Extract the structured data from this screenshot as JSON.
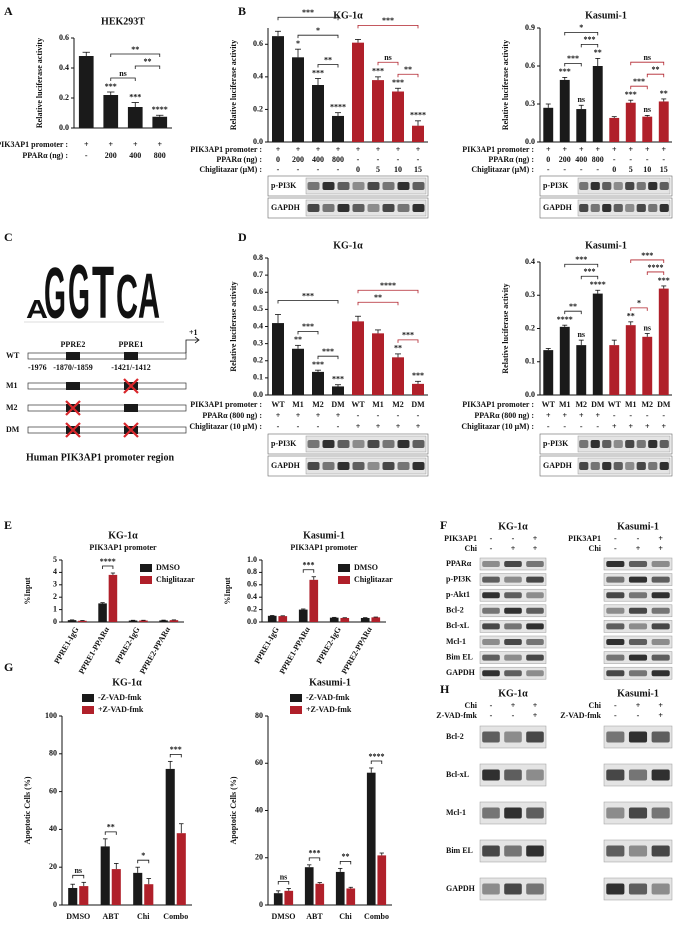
{
  "panel_letters": [
    "A",
    "B",
    "C",
    "D",
    "E",
    "F",
    "G",
    "H"
  ],
  "chart_data": [
    {
      "type": "bar",
      "title": "HEK293T",
      "y_label": "Relative luciferase activity",
      "ylim": [
        0,
        0.6
      ],
      "yticks": [
        {
          "value": 0,
          "label": "0.0"
        },
        0.2,
        0.4,
        0.6
      ],
      "values": [
        0.48,
        0.22,
        0.14,
        0.075
      ],
      "errors": [
        0.025,
        0.02,
        0.03,
        0.01
      ],
      "colors": [
        "#1a1a1a",
        "#1a1a1a",
        "#1a1a1a",
        "#1a1a1a"
      ],
      "bar_labels": [
        null,
        "***",
        "***",
        "****"
      ],
      "brackets": [
        {
          "from": 1,
          "to": 2,
          "label": "ns"
        },
        {
          "from": 2,
          "to": 3,
          "label": "**"
        },
        {
          "from": 1,
          "to": 3,
          "label": "**"
        }
      ],
      "conditions": [
        {
          "label": "PIK3AP1 promoter :",
          "values": [
            "+",
            "+",
            "+",
            "+"
          ]
        },
        {
          "label": "PPARα (ng) :",
          "values": [
            "-",
            "200",
            "400",
            "800"
          ]
        }
      ]
    },
    {
      "type": "bar",
      "title": "KG-1α",
      "y_label": "Relative luciferase activity",
      "ylim": [
        0,
        0.7
      ],
      "yticks": [
        {
          "value": 0,
          "label": "0.0"
        },
        0.2,
        0.4,
        0.6
      ],
      "values": [
        0.65,
        0.52,
        0.35,
        0.16,
        0.61,
        0.38,
        0.31,
        0.1
      ],
      "errors": [
        0.03,
        0.05,
        0.04,
        0.02,
        0.02,
        0.02,
        0.02,
        0.03
      ],
      "colors": [
        "#1a1a1a",
        "#1a1a1a",
        "#1a1a1a",
        "#1a1a1a",
        "#b0202a",
        "#b0202a",
        "#b0202a",
        "#b0202a"
      ],
      "bar_labels": [
        null,
        "*",
        "***",
        "****",
        null,
        "***",
        "***",
        "****"
      ],
      "brackets": [
        {
          "from": 2,
          "to": 3,
          "label": "**"
        },
        {
          "from": 1,
          "to": 3,
          "label": "*"
        },
        {
          "from": 0,
          "to": 3,
          "label": "***"
        },
        {
          "from": 6,
          "to": 7,
          "label": "**"
        },
        {
          "from": 5,
          "to": 6,
          "label": "ns"
        },
        {
          "from": 4,
          "to": 7,
          "label": "***"
        }
      ],
      "conditions": [
        {
          "label": "PIK3AP1 promoter :",
          "values": [
            "+",
            "+",
            "+",
            "+",
            "+",
            "+",
            "+",
            "+"
          ]
        },
        {
          "label": "PPARα (ng) :",
          "values": [
            "0",
            "200",
            "400",
            "800",
            "-",
            "-",
            "-",
            "-"
          ]
        },
        {
          "label": "Chiglitazar (μM) :",
          "values": [
            "-",
            "-",
            "-",
            "-",
            "0",
            "5",
            "10",
            "15"
          ]
        }
      ],
      "blot_rows": [
        "p-PI3K",
        "GAPDH"
      ]
    },
    {
      "type": "bar",
      "title": "Kasumi-1",
      "y_label": "Relative luciferase activity",
      "ylim": [
        0,
        0.9
      ],
      "yticks": [
        {
          "value": 0,
          "label": "0.0"
        },
        0.3,
        0.6,
        0.9
      ],
      "values": [
        0.27,
        0.49,
        0.26,
        0.6,
        0.19,
        0.31,
        0.2,
        0.32
      ],
      "errors": [
        0.03,
        0.02,
        0.03,
        0.06,
        0.01,
        0.02,
        0.01,
        0.02
      ],
      "colors": [
        "#1a1a1a",
        "#1a1a1a",
        "#1a1a1a",
        "#1a1a1a",
        "#b0202a",
        "#b0202a",
        "#b0202a",
        "#b0202a"
      ],
      "bar_labels": [
        null,
        "***",
        "ns",
        "**",
        null,
        "***",
        "ns",
        "**"
      ],
      "brackets": [
        {
          "from": 1,
          "to": 2,
          "label": "***"
        },
        {
          "from": 2,
          "to": 3,
          "label": "***"
        },
        {
          "from": 1,
          "to": 3,
          "label": "*"
        },
        {
          "from": 5,
          "to": 6,
          "label": "***"
        },
        {
          "from": 6,
          "to": 7,
          "label": "**"
        },
        {
          "from": 5,
          "to": 7,
          "label": "ns"
        }
      ],
      "conditions": [
        {
          "label": "PIK3AP1 promoter :",
          "values": [
            "+",
            "+",
            "+",
            "+",
            "+",
            "+",
            "+",
            "+"
          ]
        },
        {
          "label": "PPARα (ng) :",
          "values": [
            "0",
            "200",
            "400",
            "800",
            "-",
            "-",
            "-",
            "-"
          ]
        },
        {
          "label": "Chiglitazar (μM) :",
          "values": [
            "-",
            "-",
            "-",
            "-",
            "0",
            "5",
            "10",
            "15"
          ]
        }
      ],
      "blot_rows": [
        "p-PI3K",
        "GAPDH"
      ]
    },
    {
      "type": "bar",
      "title": "KG-1α",
      "y_label": "Relative luciferase activity",
      "ylim": [
        0,
        0.8
      ],
      "yticks": [
        {
          "value": 0,
          "label": "0.0"
        },
        0.1,
        0.2,
        0.3,
        0.4,
        0.5,
        0.6,
        0.7,
        0.8
      ],
      "values": [
        0.42,
        0.27,
        0.135,
        0.05,
        0.43,
        0.36,
        0.22,
        0.065
      ],
      "errors": [
        0.05,
        0.02,
        0.01,
        0.01,
        0.03,
        0.02,
        0.02,
        0.015
      ],
      "colors": [
        "#1a1a1a",
        "#1a1a1a",
        "#1a1a1a",
        "#1a1a1a",
        "#b0202a",
        "#b0202a",
        "#b0202a",
        "#b0202a"
      ],
      "bar_labels": [
        null,
        "**",
        "***",
        "***",
        null,
        null,
        "**",
        "***"
      ],
      "brackets": [
        {
          "from": 2,
          "to": 3,
          "label": "***"
        },
        {
          "from": 1,
          "to": 2,
          "label": "***"
        },
        {
          "from": 0,
          "to": 3,
          "label": "***"
        },
        {
          "from": 6,
          "to": 7,
          "label": "***"
        },
        {
          "from": 4,
          "to": 6,
          "label": "**"
        },
        {
          "from": 4,
          "to": 7,
          "label": "****"
        }
      ],
      "conditions": [
        {
          "label": "PIK3AP1 promoter :",
          "values": [
            "WT",
            "M1",
            "M2",
            "DM",
            "WT",
            "M1",
            "M2",
            "DM"
          ]
        },
        {
          "label": "PPARα (800 ng) :",
          "values": [
            "+",
            "+",
            "+",
            "+",
            "-",
            "-",
            "-",
            "-"
          ]
        },
        {
          "label": "Chiglitazar (10 μM) :",
          "values": [
            "-",
            "-",
            "-",
            "-",
            "+",
            "+",
            "+",
            "+"
          ]
        }
      ],
      "blot_rows": [
        "p-PI3K",
        "GAPDH"
      ]
    },
    {
      "type": "bar",
      "title": "Kasumi-1",
      "y_label": "Relative luciferase activity",
      "ylim": [
        0,
        0.4
      ],
      "yticks": [
        {
          "value": 0,
          "label": "0.0"
        },
        0.1,
        0.2,
        0.3,
        0.4
      ],
      "values": [
        0.135,
        0.205,
        0.15,
        0.305,
        0.15,
        0.21,
        0.175,
        0.32
      ],
      "errors": [
        0.005,
        0.005,
        0.015,
        0.01,
        0.015,
        0.01,
        0.01,
        0.008
      ],
      "colors": [
        "#1a1a1a",
        "#1a1a1a",
        "#1a1a1a",
        "#1a1a1a",
        "#b0202a",
        "#b0202a",
        "#b0202a",
        "#b0202a"
      ],
      "bar_labels": [
        null,
        "****",
        "ns",
        "****",
        null,
        "**",
        "ns",
        "***"
      ],
      "brackets": [
        {
          "from": 1,
          "to": 2,
          "label": "**"
        },
        {
          "from": 2,
          "to": 3,
          "label": "***"
        },
        {
          "from": 1,
          "to": 3,
          "label": "***"
        },
        {
          "from": 5,
          "to": 6,
          "label": "*"
        },
        {
          "from": 6,
          "to": 7,
          "label": "****"
        },
        {
          "from": 5,
          "to": 7,
          "label": "***"
        }
      ],
      "conditions": [
        {
          "label": "PIK3AP1 promoter :",
          "values": [
            "WT",
            "M1",
            "M2",
            "DM",
            "WT",
            "M1",
            "M2",
            "DM"
          ]
        },
        {
          "label": "PPARα (800 ng) :",
          "values": [
            "+",
            "+",
            "+",
            "+",
            "-",
            "-",
            "-",
            "-"
          ]
        },
        {
          "label": "Chiglitazar (10 μM) :",
          "values": [
            "-",
            "-",
            "-",
            "-",
            "+",
            "+",
            "+",
            "+"
          ]
        }
      ],
      "blot_rows": [
        "p-PI3K",
        "GAPDH"
      ]
    },
    {
      "type": "grouped_bar",
      "title": "KG-1α",
      "subtitle": "PIK3AP1 promoter",
      "y_label": "%Input",
      "ylim": [
        0,
        5
      ],
      "yticks": [
        0,
        1,
        2,
        3,
        4,
        5
      ],
      "categories": [
        "PPRE1-IgG",
        "PPRE1-PPARα",
        "PPRE2-IgG",
        "PPRE2-PPARα"
      ],
      "series": [
        {
          "name": "DMSO",
          "color": "#1a1a1a",
          "values": [
            0.15,
            1.5,
            0.12,
            0.13
          ],
          "errors": [
            0.02,
            0.06,
            0.02,
            0.02
          ]
        },
        {
          "name": "Chiglitazar",
          "color": "#b0202a",
          "values": [
            0.1,
            3.8,
            0.12,
            0.15
          ],
          "errors": [
            0.02,
            0.15,
            0.02,
            0.02
          ]
        }
      ],
      "brackets": [
        {
          "category": 1,
          "label": "****"
        }
      ]
    },
    {
      "type": "grouped_bar",
      "title": "Kasumi-1",
      "subtitle": "PIK3AP1 promoter",
      "y_label": "%Input",
      "ylim": [
        0,
        1
      ],
      "yticks": [
        {
          "value": 0,
          "label": "0.0"
        },
        0.2,
        0.4,
        0.6,
        0.8,
        {
          "value": 1,
          "label": "1.0"
        }
      ],
      "categories": [
        "PPRE1-IgG",
        "PPRE1-PPARα",
        "PPRE2-IgG",
        "PPRE2-PPARα"
      ],
      "series": [
        {
          "name": "DMSO",
          "color": "#1a1a1a",
          "values": [
            0.1,
            0.2,
            0.07,
            0.065
          ],
          "errors": [
            0.005,
            0.01,
            0.005,
            0.005
          ]
        },
        {
          "name": "Chiglitazar",
          "color": "#b0202a",
          "values": [
            0.095,
            0.68,
            0.065,
            0.075
          ],
          "errors": [
            0.005,
            0.05,
            0.004,
            0.005
          ]
        }
      ],
      "brackets": [
        {
          "category": 1,
          "label": "***"
        }
      ]
    },
    {
      "type": "grouped_bar",
      "title": "KG-1α",
      "y_label": "Apoptotic Cells (%)",
      "ylim": [
        0,
        100
      ],
      "yticks": [
        0,
        20,
        40,
        60,
        80,
        100
      ],
      "categories": [
        "DMSO",
        "ABT",
        "Chi",
        "Combo"
      ],
      "series": [
        {
          "name": "-Z-VAD-fmk",
          "color": "#1a1a1a",
          "values": [
            9,
            31,
            17,
            72
          ],
          "errors": [
            2,
            4,
            3,
            4
          ]
        },
        {
          "name": "+Z-VAD-fmk",
          "color": "#b0202a",
          "values": [
            10,
            19,
            11,
            38
          ],
          "errors": [
            2,
            3,
            3,
            5
          ]
        }
      ],
      "brackets": [
        {
          "category": 0,
          "label": "ns"
        },
        {
          "category": 1,
          "label": "**"
        },
        {
          "category": 2,
          "label": "*"
        },
        {
          "category": 3,
          "label": "***"
        }
      ]
    },
    {
      "type": "grouped_bar",
      "title": "Kasumi-1",
      "y_label": "Apoptotic Cells (%)",
      "ylim": [
        0,
        80
      ],
      "yticks": [
        0,
        20,
        40,
        60,
        80
      ],
      "categories": [
        "DMSO",
        "ABT",
        "Chi",
        "Combo"
      ],
      "series": [
        {
          "name": "-Z-VAD-fmk",
          "color": "#1a1a1a",
          "values": [
            5,
            16,
            14,
            56
          ],
          "errors": [
            1,
            1,
            1.5,
            2
          ]
        },
        {
          "name": "+Z-VAD-fmk",
          "color": "#b0202a",
          "values": [
            6,
            9,
            7,
            21
          ],
          "errors": [
            1,
            0.5,
            0.5,
            1
          ]
        }
      ],
      "brackets": [
        {
          "category": 0,
          "label": "ns"
        },
        {
          "category": 1,
          "label": "***"
        },
        {
          "category": 2,
          "label": "**"
        },
        {
          "category": 3,
          "label": "****"
        }
      ]
    }
  ],
  "promoter_diagram": {
    "logo_letters": [
      {
        "letter": "A",
        "color": "#2e9e3a"
      },
      {
        "letter": "G",
        "color": "#f2a51c"
      },
      {
        "letter": "G",
        "color": "#f2a51c"
      },
      {
        "letter": "T",
        "color": "#d8262b"
      },
      {
        "letter": "C",
        "color": "#2a5bb8"
      },
      {
        "letter": "A",
        "color": "#2e9e3a"
      }
    ],
    "constructs": [
      "WT",
      "M1",
      "M2",
      "DM"
    ],
    "elements": [
      "PPRE2",
      "PPRE1"
    ],
    "tss": "+1",
    "positions": [
      "-1976",
      "-1870/-1859",
      "-1421/-1412"
    ],
    "caption": "Human PIK3AP1 promoter region"
  },
  "blot_panels": [
    {
      "rows": [
        "PPARα",
        "p-PI3K",
        "p-Akt1",
        "Bcl-2",
        "Bcl-xL",
        "Mcl-1",
        "Bim EL",
        "GAPDH"
      ],
      "blots": [
        {
          "title": "KG-1α",
          "conditions": [
            {
              "label": "PIK3AP1",
              "values": [
                "-",
                "-",
                "+"
              ]
            },
            {
              "label": "Chi",
              "values": [
                "-",
                "+",
                "+"
              ]
            }
          ]
        },
        {
          "title": "Kasumi-1",
          "conditions": [
            {
              "label": "PIK3AP1",
              "values": [
                "-",
                "-",
                "+"
              ]
            },
            {
              "label": "Chi",
              "values": [
                "-",
                "+",
                "+"
              ]
            }
          ]
        }
      ]
    },
    {
      "rows": [
        "Bcl-2",
        "Bcl-xL",
        "Mcl-1",
        "Bim EL",
        "GAPDH"
      ],
      "blots": [
        {
          "title": "KG-1α",
          "conditions": [
            {
              "label": "Chi",
              "values": [
                "-",
                "+",
                "+"
              ]
            },
            {
              "label": "Z-VAD-fmk",
              "values": [
                "-",
                "-",
                "+"
              ]
            }
          ]
        },
        {
          "title": "Kasumi-1",
          "conditions": [
            {
              "label": "Chi",
              "values": [
                "-",
                "+",
                "+"
              ]
            },
            {
              "label": "Z-VAD-fmk",
              "values": [
                "-",
                "-",
                "+"
              ]
            }
          ]
        }
      ]
    }
  ]
}
